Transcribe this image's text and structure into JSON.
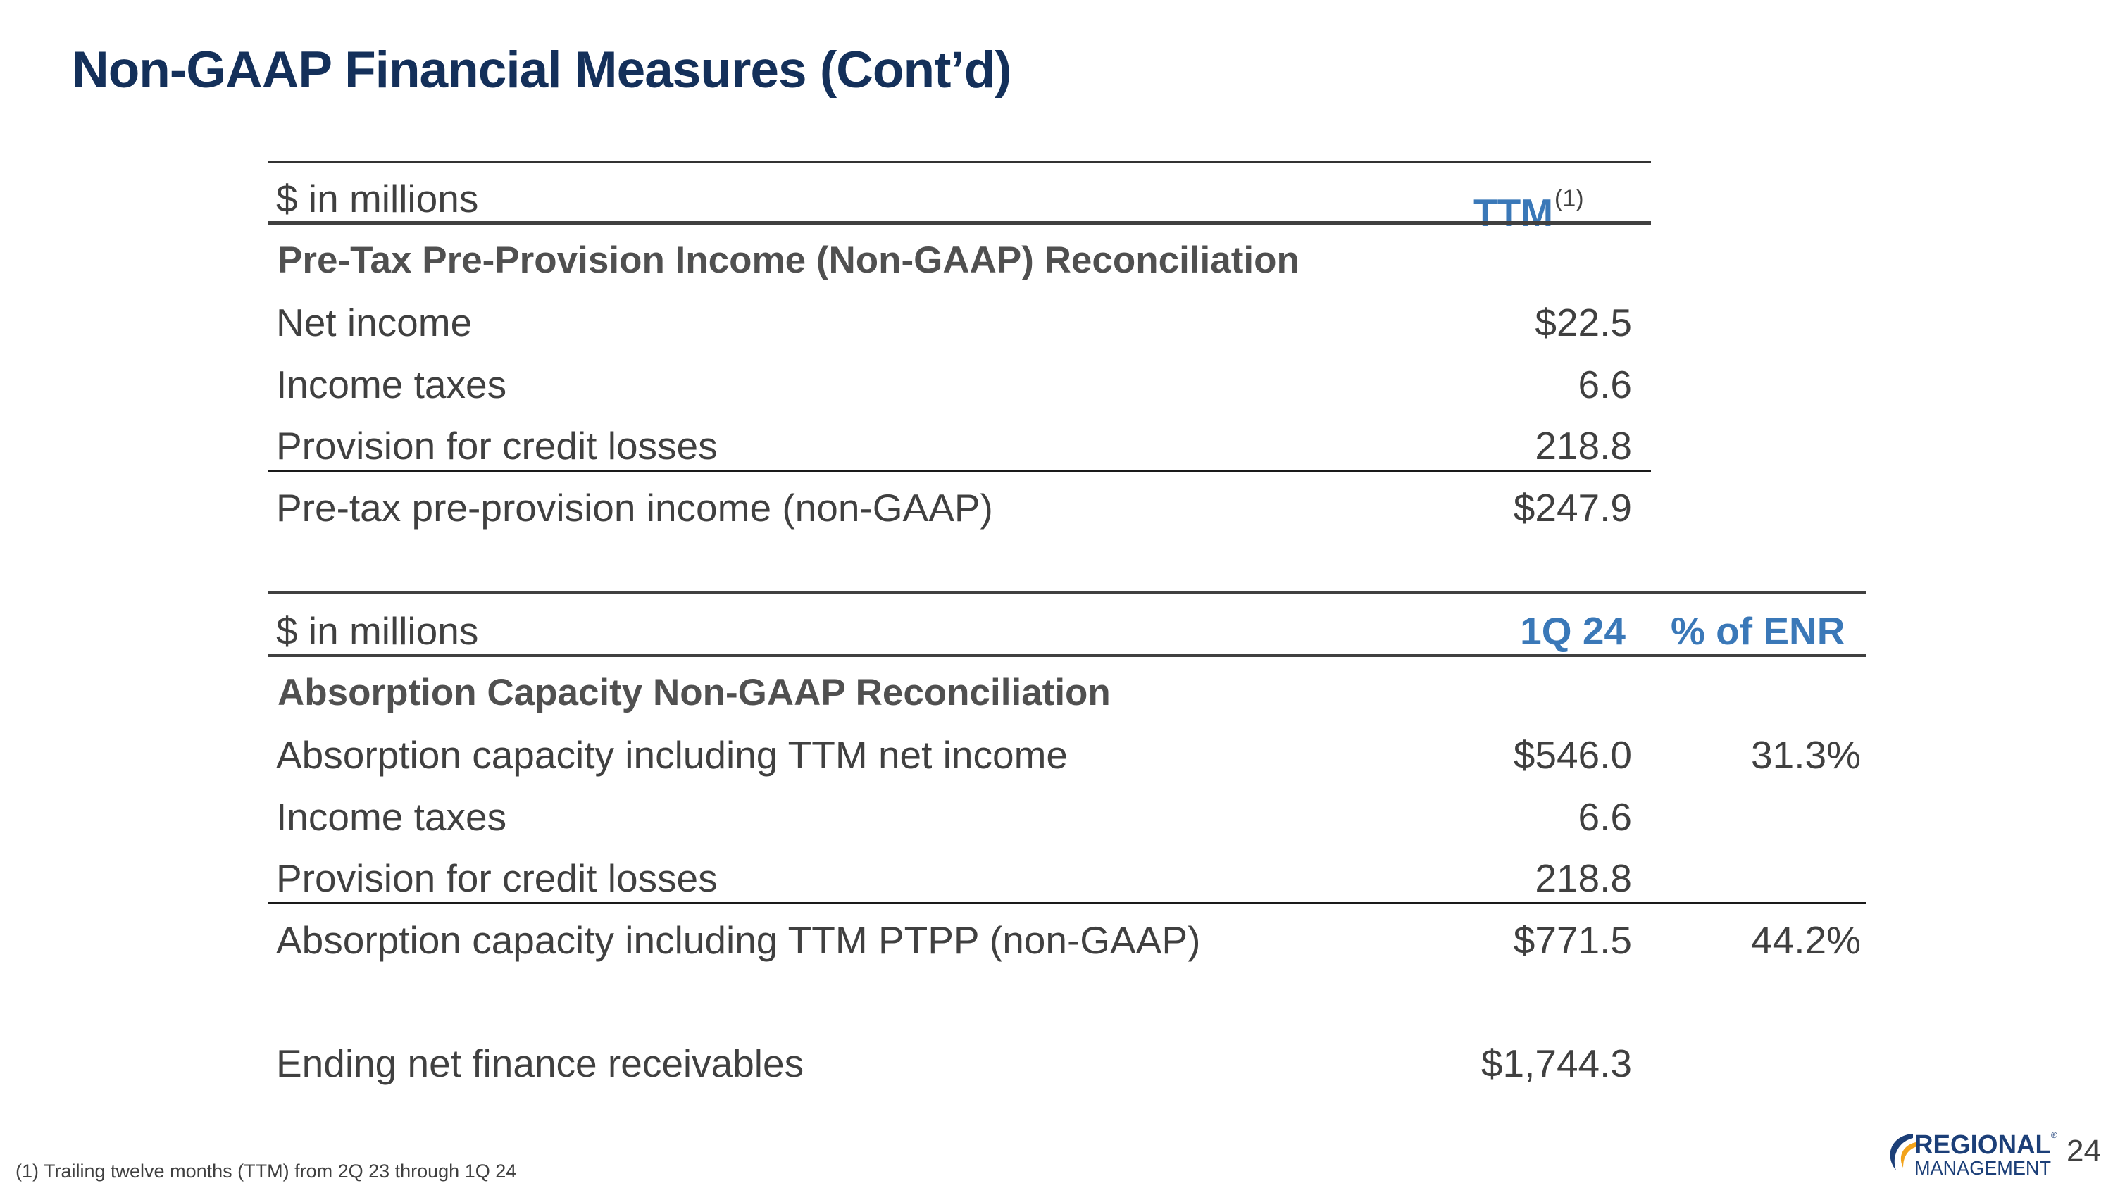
{
  "title": "Non-GAAP Financial Measures (Cont’d)",
  "table1": {
    "unit_label": "$ in millions",
    "col_header": "TTM",
    "col_header_sup": "(1)",
    "section_title": "Pre-Tax Pre-Provision Income (Non-GAAP) Reconciliation",
    "rows": [
      {
        "label": "Net income",
        "value": "$22.5"
      },
      {
        "label": "Income taxes",
        "value": "6.6"
      },
      {
        "label": "Provision for credit losses",
        "value": "218.8"
      },
      {
        "label": "Pre-tax pre-provision income (non-GAAP)",
        "value": "$247.9"
      }
    ]
  },
  "table2": {
    "unit_label": "$ in millions",
    "col_header_1": "1Q 24",
    "col_header_2": "% of ENR",
    "section_title": "Absorption Capacity Non-GAAP Reconciliation",
    "rows": [
      {
        "label": "Absorption capacity including TTM net income",
        "value": "$546.0",
        "pct": "31.3%"
      },
      {
        "label": "Income taxes",
        "value": "6.6",
        "pct": ""
      },
      {
        "label": "Provision for credit losses",
        "value": "218.8",
        "pct": ""
      },
      {
        "label": "Absorption capacity including TTM PTPP (non-GAAP)",
        "value": "$771.5",
        "pct": "44.2%"
      }
    ],
    "enr_row": {
      "label": "Ending net finance receivables",
      "value": "$1,744.3"
    }
  },
  "footnote": "(1) Trailing twelve months (TTM) from 2Q 23 through 1Q 24",
  "logo": {
    "line1": "REGIONAL",
    "line2": "MANAGEMENT",
    "trademark": "®"
  },
  "page_number": "24",
  "colors": {
    "title": "#14305a",
    "accent_blue": "#3a78b8",
    "text": "#404040",
    "logo_navy": "#1c3f78"
  }
}
